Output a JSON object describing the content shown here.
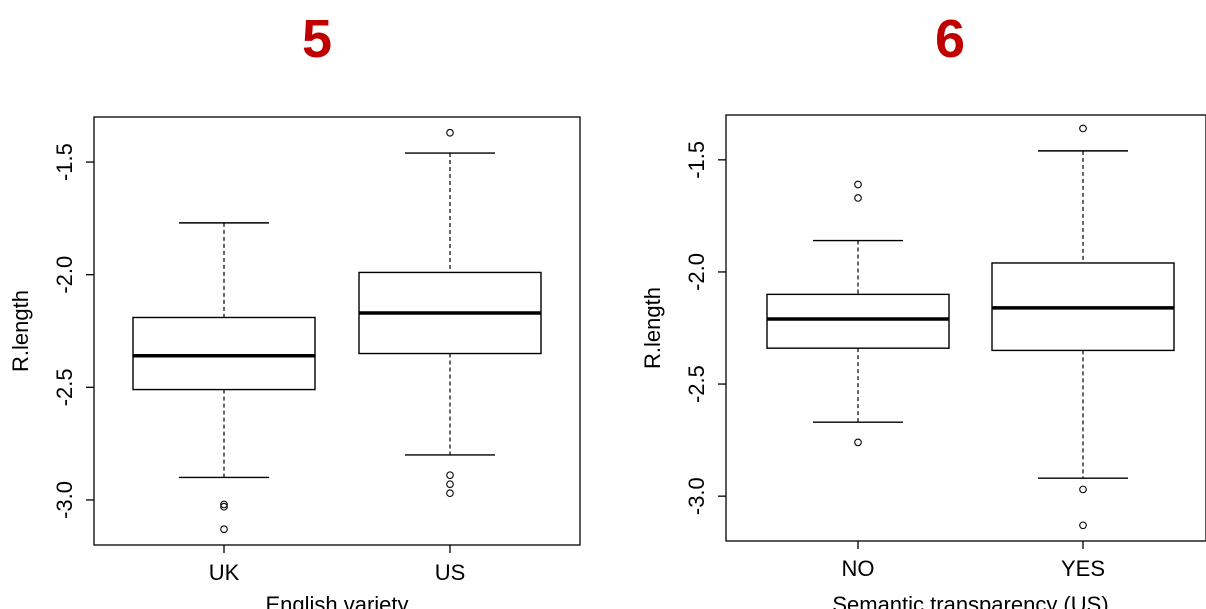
{
  "panels": {
    "left_number": "5",
    "right_number": "6"
  },
  "chart_data": [
    {
      "type": "boxplot",
      "ylabel": "R.length",
      "xlabel": "English variety",
      "ylim": [
        -3.2,
        -1.3
      ],
      "yticks": [
        "-1.5",
        "-2.0",
        "-2.5",
        "-3.0"
      ],
      "ytick_values": [
        -1.5,
        -2.0,
        -2.5,
        -3.0
      ],
      "categories": [
        "UK",
        "US"
      ],
      "boxes": [
        {
          "name": "UK",
          "whisker_low": -2.9,
          "q1": -2.51,
          "median": -2.36,
          "q3": -2.19,
          "whisker_high": -1.77,
          "outliers": [
            -3.02,
            -3.03,
            -3.13
          ]
        },
        {
          "name": "US",
          "whisker_low": -2.8,
          "q1": -2.35,
          "median": -2.17,
          "q3": -1.99,
          "whisker_high": -1.46,
          "outliers": [
            -1.37,
            -2.89,
            -2.93,
            -2.97
          ]
        }
      ]
    },
    {
      "type": "boxplot",
      "ylabel": "R.length",
      "xlabel": "Semantic transparency (US)",
      "ylim": [
        -3.2,
        -1.3
      ],
      "yticks": [
        "-1.5",
        "-2.0",
        "-2.5",
        "-3.0"
      ],
      "ytick_values": [
        -1.5,
        -2.0,
        -2.5,
        -3.0
      ],
      "categories": [
        "NO",
        "YES"
      ],
      "boxes": [
        {
          "name": "NO",
          "whisker_low": -2.67,
          "q1": -2.34,
          "median": -2.21,
          "q3": -2.1,
          "whisker_high": -1.86,
          "outliers": [
            -1.61,
            -1.67,
            -2.76
          ]
        },
        {
          "name": "YES",
          "whisker_low": -2.92,
          "q1": -2.35,
          "median": -2.16,
          "q3": -1.96,
          "whisker_high": -1.46,
          "outliers": [
            -1.36,
            -2.97,
            -3.13
          ]
        }
      ]
    }
  ]
}
